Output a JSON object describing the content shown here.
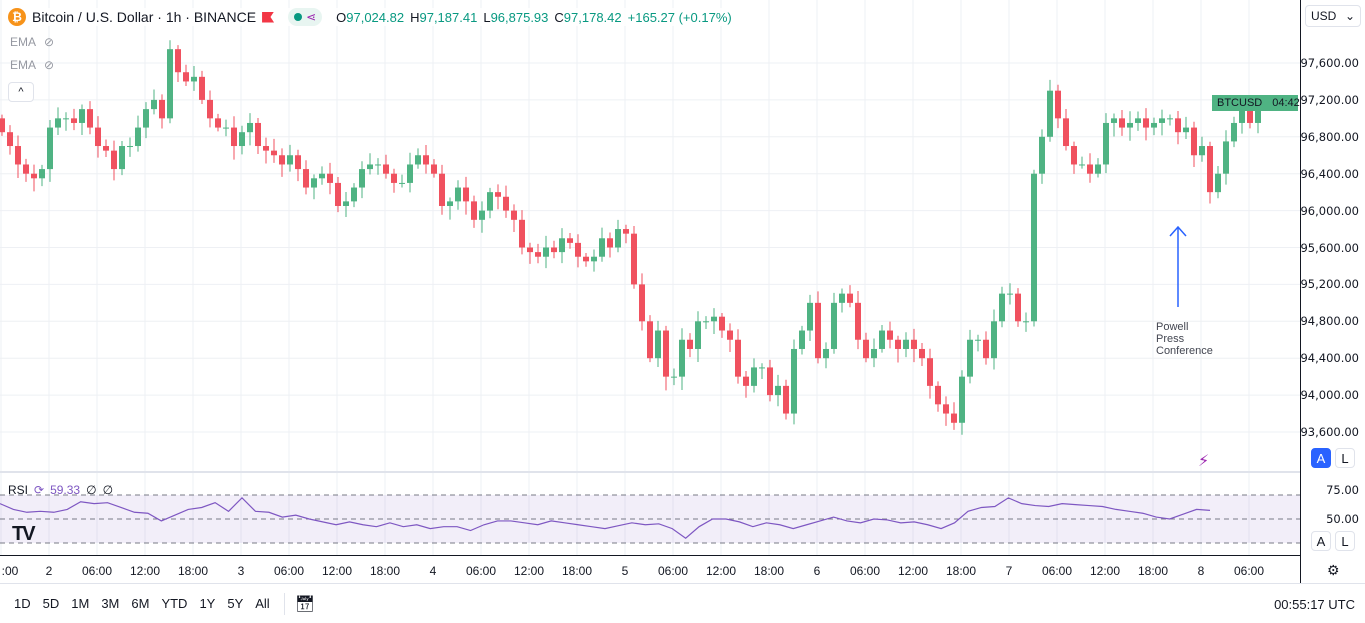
{
  "header": {
    "symbol_title": "Bitcoin / U.S. Dollar · 1h · BINANCE",
    "coin_icon": "bitcoin-icon",
    "open_label": "O",
    "open": "97,024.82",
    "high_label": "H",
    "high": "97,187.41",
    "low_label": "L",
    "low": "96,875.93",
    "close_label": "C",
    "close": "97,178.42",
    "change": "+165.27 (+0.17%)"
  },
  "indicators": [
    {
      "label": "EMA"
    },
    {
      "label": "EMA"
    }
  ],
  "currency": "USD",
  "price_tag": {
    "symbol": "BTCUSD",
    "countdown": "04:42"
  },
  "price_axis": [
    "97,600.00",
    "97,200.00",
    "96,800.00",
    "96,400.00",
    "96,000.00",
    "95,600.00",
    "95,200.00",
    "94,800.00",
    "94,400.00",
    "94,000.00",
    "93,600.00"
  ],
  "price_levels": [
    97600,
    97200,
    96800,
    96400,
    96000,
    95600,
    95200,
    94800,
    94400,
    94000,
    93600
  ],
  "rsi": {
    "label": "RSI",
    "value": "59.33",
    "extra1": "∅",
    "extra2": "∅",
    "axis": [
      "75.00",
      "50.00"
    ]
  },
  "scale_buttons": {
    "auto": "A",
    "log": "L"
  },
  "time_axis": [
    ":00",
    "2",
    "06:00",
    "12:00",
    "18:00",
    "3",
    "06:00",
    "12:00",
    "18:00",
    "4",
    "06:00",
    "12:00",
    "18:00",
    "5",
    "06:00",
    "12:00",
    "18:00",
    "6",
    "06:00",
    "12:00",
    "18:00",
    "7",
    "06:00",
    "12:00",
    "18:00",
    "8",
    "06:00"
  ],
  "annotation": {
    "line1": "Powell",
    "line2": "Press",
    "line3": "Conference"
  },
  "ranges": [
    "1D",
    "5D",
    "1M",
    "3M",
    "6M",
    "YTD",
    "1Y",
    "5Y",
    "All"
  ],
  "clock": "00:55:17 UTC",
  "colors": {
    "up": "#26a69a",
    "down": "#f23645",
    "rsi": "#7e57c2",
    "accent": "#2962ff"
  },
  "chart_data": {
    "type": "candlestick",
    "interval": "1h",
    "ylim": [
      93300,
      97900
    ],
    "closes": [
      96850,
      96700,
      96500,
      96400,
      96350,
      96450,
      96900,
      97000,
      97000,
      96950,
      97100,
      96900,
      96700,
      96650,
      96450,
      96700,
      96700,
      96900,
      97100,
      97200,
      97000,
      97750,
      97500,
      97400,
      97450,
      97200,
      97000,
      96900,
      96900,
      96700,
      96850,
      96950,
      96700,
      96650,
      96600,
      96500,
      96600,
      96450,
      96250,
      96350,
      96400,
      96300,
      96050,
      96100,
      96250,
      96450,
      96500,
      96500,
      96400,
      96300,
      96300,
      96500,
      96600,
      96500,
      96400,
      96050,
      96100,
      96250,
      96100,
      95900,
      96000,
      96200,
      96150,
      96000,
      95900,
      95600,
      95550,
      95500,
      95600,
      95550,
      95700,
      95650,
      95500,
      95450,
      95500,
      95700,
      95600,
      95800,
      95750,
      95200,
      94800,
      94400,
      94700,
      94200,
      94200,
      94600,
      94500,
      94800,
      94800,
      94850,
      94700,
      94600,
      94200,
      94100,
      94300,
      94300,
      94000,
      94100,
      93800,
      94500,
      94700,
      95000,
      94400,
      94500,
      95000,
      95100,
      95000,
      94600,
      94400,
      94500,
      94700,
      94600,
      94500,
      94600,
      94500,
      94400,
      94100,
      93900,
      93800,
      93700,
      94200,
      94600,
      94600,
      94400,
      94800,
      95100,
      95100,
      94800,
      94800,
      96400,
      96800,
      97300,
      97000,
      96700,
      96500,
      96500,
      96400,
      96500,
      96950,
      97000,
      96900,
      96950,
      97000,
      96900,
      96950,
      97000,
      97000,
      96850,
      96900,
      96600,
      96700,
      96200,
      96400,
      96750,
      96950,
      97100,
      96950,
      97100
    ],
    "rsi_values": [
      66,
      60,
      57,
      58,
      57,
      60,
      68,
      66,
      67,
      62,
      57,
      56,
      48,
      54,
      60,
      62,
      67,
      58,
      72,
      58,
      57,
      52,
      54,
      50,
      47,
      44,
      47,
      44,
      42,
      46,
      42,
      44,
      40,
      42,
      42,
      38,
      44,
      48,
      48,
      46,
      44,
      48,
      46,
      44,
      42,
      40,
      43,
      46,
      44,
      45,
      40,
      30,
      42,
      50,
      50,
      47,
      42,
      46,
      44,
      40,
      44,
      48,
      52,
      48,
      46,
      50,
      49,
      46,
      47,
      44,
      40,
      46,
      58,
      62,
      63,
      72,
      66,
      64,
      63,
      66,
      65,
      64,
      63,
      60,
      58,
      56,
      52,
      50,
      55,
      60,
      59
    ]
  }
}
